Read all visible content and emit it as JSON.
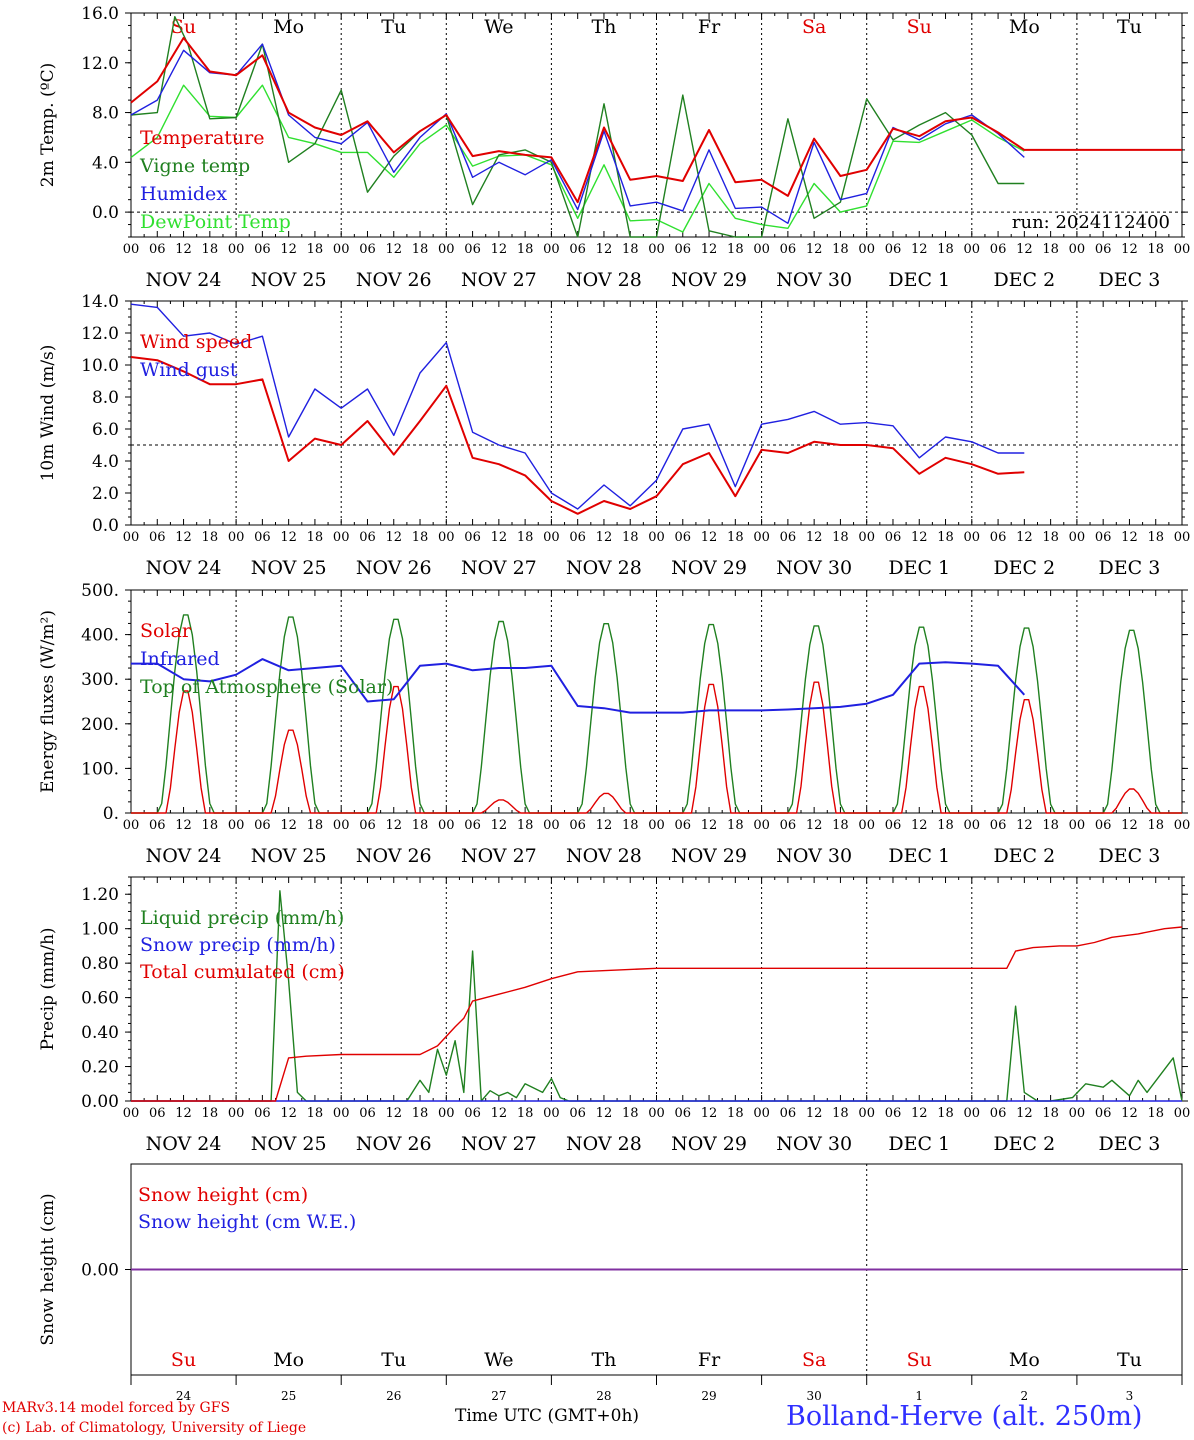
{
  "footer": {
    "model": "MARv3.14 model forced by GFS",
    "credit": "(c) Lab. of Climatology, University of Liege",
    "xaxis": "Time UTC (GMT+0h)",
    "station": "Bolland-Herve (alt. 250m)"
  },
  "days": {
    "labels": [
      "NOV 24",
      "NOV 25",
      "NOV 26",
      "NOV 27",
      "NOV 28",
      "NOV 29",
      "NOV 30",
      "DEC  1",
      "DEC  2",
      "DEC  3"
    ],
    "weekdays": [
      "Su",
      "Mo",
      "Tu",
      "We",
      "Th",
      "Fr",
      "Sa",
      "Su",
      "Mo",
      "Tu"
    ],
    "weekday_colors": [
      "#e00000",
      "#000000",
      "#000000",
      "#000000",
      "#000000",
      "#000000",
      "#e00000",
      "#e00000",
      "#000000",
      "#000000"
    ],
    "day_numbers": [
      "24",
      "25",
      "26",
      "27",
      "28",
      "29",
      "30",
      "1",
      "2",
      "3"
    ],
    "hour_ticks": [
      "00",
      "06",
      "12",
      "18"
    ]
  },
  "chart_data": [
    {
      "type": "line",
      "ylabel": "2m Temp. (ºC)",
      "ylim": [
        -2,
        16
      ],
      "yticks": [
        "16.0",
        "12.0",
        "8.0",
        "4.0",
        "0.0"
      ],
      "ytick_values": [
        16,
        12,
        8,
        4,
        0
      ],
      "reference_line": 0,
      "annotation": "run: 2024112400",
      "x_unit": "hours since NOV 24 00 UTC",
      "series": [
        {
          "name": "Temperature",
          "color": "#e00000",
          "x": [
            0,
            6,
            12,
            18,
            24,
            30,
            36,
            42,
            48,
            54,
            60,
            66,
            72,
            78,
            84,
            90,
            96,
            102,
            108,
            114,
            120,
            126,
            132,
            138,
            144,
            150,
            156,
            162,
            168,
            174,
            180,
            186,
            192,
            198,
            204,
            210,
            216,
            222,
            228,
            234,
            240
          ],
          "values": [
            8.8,
            10.5,
            14.0,
            11.3,
            11.0,
            12.6,
            8.0,
            6.8,
            6.2,
            7.3,
            4.8,
            6.5,
            7.8,
            4.5,
            4.9,
            4.6,
            4.4,
            0.8,
            6.8,
            2.6,
            2.9,
            2.5,
            6.6,
            2.4,
            2.6,
            1.3,
            5.9,
            2.9,
            3.4,
            6.7,
            6.1,
            7.3,
            7.6,
            6.4,
            5.0,
            5,
            5,
            5,
            5,
            5,
            5
          ]
        },
        {
          "name": "Vigne temp",
          "color": "#208020",
          "x": [
            0,
            6,
            10,
            13,
            18,
            24,
            30,
            36,
            42,
            48,
            54,
            60,
            66,
            72,
            78,
            84,
            90,
            96,
            102,
            108,
            114,
            120,
            126,
            132,
            138,
            144,
            150,
            156,
            162,
            168,
            174,
            180,
            186,
            192,
            198,
            204
          ],
          "values": [
            7.8,
            8.0,
            15.7,
            13.5,
            7.5,
            7.6,
            13.5,
            4.0,
            5.5,
            9.8,
            1.6,
            4.5,
            6.5,
            7.8,
            0.6,
            4.6,
            5.0,
            4.0,
            -2.0,
            8.7,
            -2.5,
            -2.0,
            9.4,
            -1.5,
            -2.0,
            -2.0,
            7.5,
            -0.5,
            0.8,
            9.1,
            5.8,
            7.0,
            8.0,
            6.2,
            2.3,
            2.3
          ]
        },
        {
          "name": "Humidex",
          "color": "#2020e0",
          "x": [
            0,
            6,
            12,
            18,
            24,
            30,
            36,
            42,
            48,
            54,
            60,
            66,
            72,
            78,
            84,
            90,
            96,
            102,
            108,
            114,
            120,
            126,
            132,
            138,
            144,
            150,
            156,
            162,
            168,
            174,
            180,
            186,
            192,
            198,
            204
          ],
          "values": [
            7.8,
            9.0,
            13.0,
            11.2,
            11.0,
            13.5,
            7.8,
            6.0,
            5.5,
            7.2,
            3.2,
            6.0,
            7.9,
            2.8,
            4.0,
            3.0,
            4.2,
            0.2,
            6.5,
            0.5,
            0.8,
            0.1,
            5.0,
            0.3,
            0.4,
            -0.9,
            5.6,
            1.0,
            1.5,
            6.8,
            5.8,
            7.1,
            7.8,
            6.3,
            4.4
          ]
        },
        {
          "name": "DewPoint Temp",
          "color": "#30e030",
          "x": [
            0,
            6,
            12,
            18,
            24,
            30,
            36,
            42,
            48,
            54,
            60,
            66,
            72,
            78,
            84,
            90,
            96,
            102,
            108,
            114,
            120,
            126,
            132,
            138,
            144,
            150,
            156,
            162,
            168,
            174,
            180,
            186,
            192,
            198,
            204
          ],
          "values": [
            4.4,
            6.0,
            10.2,
            7.7,
            7.6,
            10.2,
            6.0,
            5.5,
            4.8,
            4.8,
            2.8,
            5.5,
            7.0,
            3.7,
            4.5,
            4.6,
            3.8,
            -0.5,
            3.8,
            -0.7,
            -0.6,
            -1.6,
            2.3,
            -0.5,
            -1.0,
            -1.3,
            2.3,
            0.0,
            0.5,
            5.7,
            5.6,
            6.5,
            7.4,
            6.0,
            4.9
          ]
        }
      ]
    },
    {
      "type": "line",
      "ylabel": "10m Wind (m/s)",
      "ylim": [
        0,
        14
      ],
      "yticks": [
        "14.0",
        "12.0",
        "10.0",
        "8.0",
        "6.0",
        "4.0",
        "2.0",
        "0.0"
      ],
      "ytick_values": [
        14,
        12,
        10,
        8,
        6,
        4,
        2,
        0
      ],
      "reference_line": 5,
      "x_unit": "hours since NOV 24 00 UTC",
      "series": [
        {
          "name": "Wind speed",
          "color": "#e00000",
          "x": [
            0,
            6,
            12,
            18,
            24,
            30,
            36,
            42,
            48,
            54,
            60,
            66,
            72,
            78,
            84,
            90,
            96,
            102,
            108,
            114,
            120,
            126,
            132,
            138,
            144,
            150,
            156,
            162,
            168,
            174,
            180,
            186,
            192,
            198,
            204
          ],
          "values": [
            10.5,
            10.3,
            9.6,
            8.8,
            8.8,
            9.1,
            4.0,
            5.4,
            5.0,
            6.5,
            4.4,
            6.5,
            8.7,
            4.2,
            3.8,
            3.1,
            1.5,
            0.7,
            1.5,
            1.0,
            1.8,
            3.8,
            4.5,
            1.8,
            4.7,
            4.5,
            5.2,
            5.0,
            5.0,
            4.8,
            3.2,
            4.2,
            3.8,
            3.2,
            3.3
          ]
        },
        {
          "name": "Wind gust",
          "color": "#2020e0",
          "x": [
            0,
            6,
            12,
            18,
            24,
            30,
            36,
            42,
            48,
            54,
            60,
            66,
            72,
            78,
            84,
            90,
            96,
            102,
            108,
            114,
            120,
            126,
            132,
            138,
            144,
            150,
            156,
            162,
            168,
            174,
            180,
            186,
            192,
            198,
            204
          ],
          "values": [
            13.8,
            13.6,
            11.8,
            12.0,
            11.3,
            11.8,
            5.5,
            8.5,
            7.3,
            8.5,
            5.6,
            9.5,
            11.4,
            5.8,
            5.0,
            4.5,
            2.0,
            1.0,
            2.5,
            1.2,
            2.8,
            6.0,
            6.3,
            2.4,
            6.3,
            6.6,
            7.1,
            6.3,
            6.4,
            6.2,
            4.2,
            5.5,
            5.2,
            4.5,
            4.5
          ]
        }
      ]
    },
    {
      "type": "line",
      "ylabel": "Energy fluxes (W/m²)",
      "ylim": [
        0,
        500
      ],
      "yticks": [
        "500.",
        "400.",
        "300.",
        "200.",
        "100.",
        "0."
      ],
      "ytick_values": [
        500,
        400,
        300,
        200,
        100,
        0
      ],
      "x_unit": "hours since NOV 24 00 UTC",
      "series": [
        {
          "name": "Solar",
          "color": "#e00000",
          "daily_peak_values": [
            280,
            190,
            290,
            30,
            45,
            295,
            300,
            290,
            260,
            55
          ]
        },
        {
          "name": "Infrared",
          "color": "#2020e0",
          "x": [
            0,
            6,
            12,
            18,
            24,
            30,
            36,
            42,
            48,
            54,
            60,
            66,
            72,
            78,
            84,
            90,
            96,
            102,
            108,
            114,
            120,
            126,
            132,
            138,
            144,
            150,
            156,
            162,
            168,
            174,
            180,
            186,
            192,
            198,
            204
          ],
          "values": [
            335,
            335,
            300,
            295,
            310,
            345,
            320,
            325,
            330,
            250,
            255,
            330,
            335,
            320,
            325,
            325,
            330,
            240,
            235,
            225,
            225,
            225,
            230,
            230,
            230,
            232,
            235,
            238,
            245,
            265,
            335,
            338,
            335,
            330,
            265
          ]
        },
        {
          "name": "Top of Atmosphere (Solar)",
          "color": "#208020",
          "daily_peak_values": [
            450,
            445,
            440,
            435,
            430,
            428,
            425,
            422,
            420,
            415
          ]
        }
      ]
    },
    {
      "type": "line",
      "ylabel": "Precip (mm/h)",
      "ylim": [
        0,
        1.3
      ],
      "yticks": [
        "1.20",
        "1.00",
        "0.80",
        "0.60",
        "0.40",
        "0.20",
        "0.00"
      ],
      "ytick_values": [
        1.2,
        1.0,
        0.8,
        0.6,
        0.4,
        0.2,
        0.0
      ],
      "x_unit": "hours since NOV 24 00 UTC",
      "series": [
        {
          "name": "Liquid precip (mm/h)",
          "color": "#208020",
          "x": [
            0,
            32,
            34,
            36,
            38,
            40,
            46,
            63,
            66,
            68,
            70,
            72,
            74,
            76,
            78,
            80,
            82,
            84,
            86,
            88,
            90,
            94,
            96,
            98,
            100,
            200,
            202,
            204,
            207,
            210,
            215,
            218,
            222,
            224,
            228,
            230,
            232,
            238,
            240
          ],
          "values": [
            0,
            0,
            1.22,
            0.7,
            0.05,
            0,
            0,
            0,
            0.12,
            0.05,
            0.3,
            0.15,
            0.35,
            0.05,
            0.87,
            0,
            0.06,
            0.03,
            0.05,
            0.02,
            0.1,
            0.05,
            0.13,
            0.02,
            0,
            0,
            0.55,
            0.05,
            0,
            0,
            0.02,
            0.1,
            0.08,
            0.12,
            0.03,
            0.12,
            0.05,
            0.25,
            0
          ]
        },
        {
          "name": "Snow precip (mm/h)",
          "color": "#2020e0",
          "x": [
            0,
            240
          ],
          "values": [
            0,
            0
          ]
        },
        {
          "name": "Total cumulated (cm)",
          "color": "#e00000",
          "x": [
            0,
            33,
            36,
            40,
            48,
            60,
            66,
            70,
            74,
            76,
            78,
            84,
            90,
            96,
            102,
            120,
            144,
            168,
            200,
            202,
            206,
            212,
            216,
            220,
            224,
            230,
            236,
            240
          ],
          "values": [
            0,
            0,
            0.25,
            0.26,
            0.27,
            0.27,
            0.27,
            0.32,
            0.43,
            0.48,
            0.58,
            0.62,
            0.66,
            0.71,
            0.75,
            0.77,
            0.77,
            0.77,
            0.77,
            0.87,
            0.89,
            0.9,
            0.9,
            0.92,
            0.95,
            0.97,
            1.0,
            1.01
          ]
        }
      ]
    },
    {
      "type": "line",
      "ylabel": "Snow height (cm)",
      "yticks": [
        "0.00"
      ],
      "ytick_values": [
        0
      ],
      "series": [
        {
          "name": "Snow height (cm)",
          "color": "#e00000",
          "values": [
            0,
            0
          ]
        },
        {
          "name": "Snow height (cm W.E.)",
          "color": "#2020e0",
          "values": [
            0,
            0
          ]
        }
      ]
    }
  ]
}
